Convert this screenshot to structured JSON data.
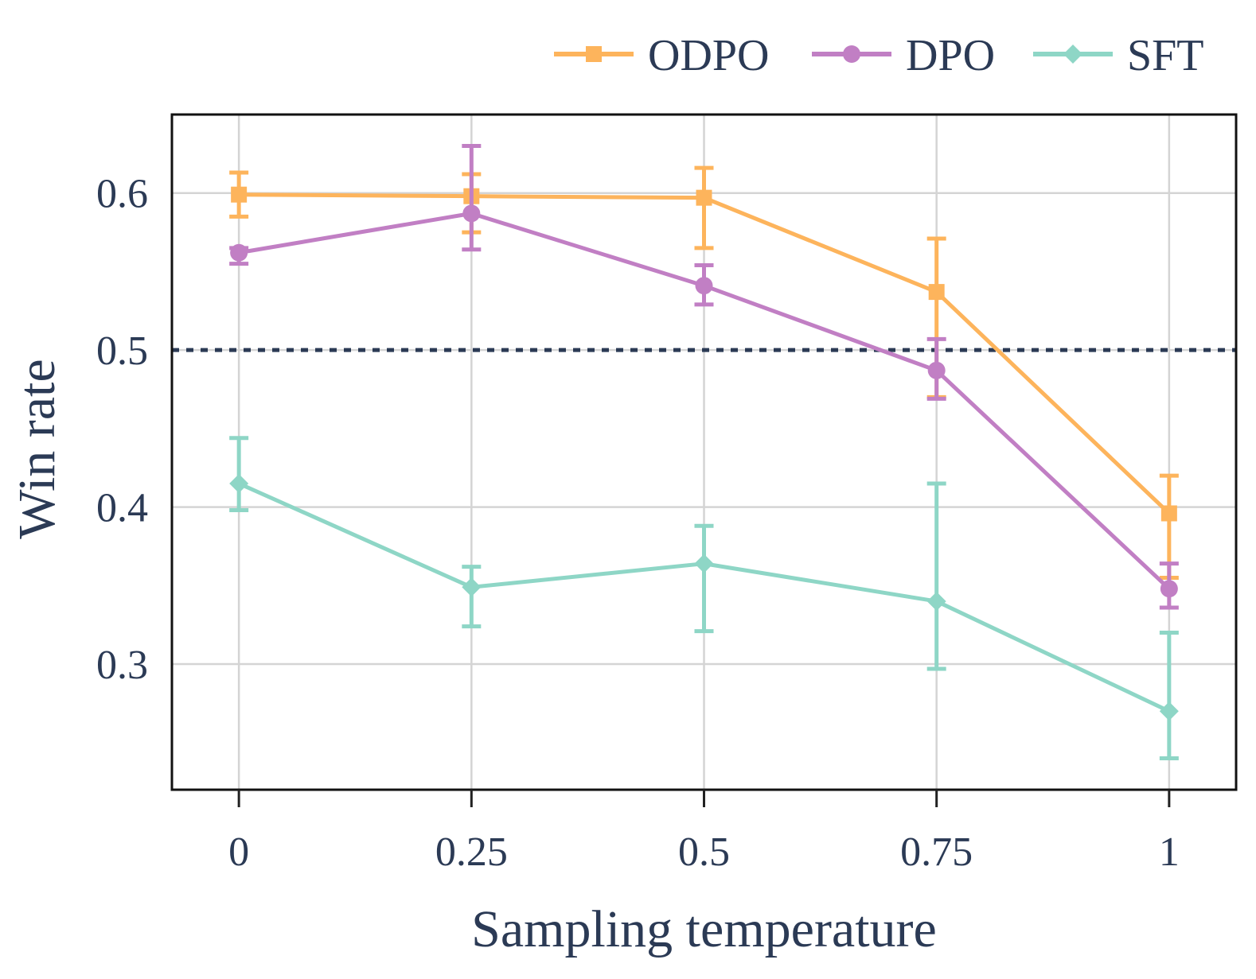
{
  "chart_data": {
    "type": "line",
    "title": "",
    "xlabel": "Sampling temperature",
    "ylabel": "Win rate",
    "x": [
      0,
      0.25,
      0.5,
      0.75,
      1
    ],
    "x_tick_labels": [
      "0",
      "0.25",
      "0.5",
      "0.75",
      "1"
    ],
    "y_ticks": [
      0.3,
      0.4,
      0.5,
      0.6
    ],
    "y_tick_labels": [
      "0.3",
      "0.4",
      "0.5",
      "0.6"
    ],
    "xlim": [
      -0.072,
      1.072
    ],
    "ylim": [
      0.22,
      0.65
    ],
    "grid": true,
    "legend_position": "top-right",
    "reference_line": {
      "y": 0.5,
      "style": "dotted",
      "color": "#2b3a55"
    },
    "series": [
      {
        "name": "ODPO",
        "color": "#fdb45c",
        "marker": "square",
        "values": [
          0.599,
          0.598,
          0.597,
          0.537,
          0.396
        ],
        "err_low": [
          0.585,
          0.575,
          0.565,
          0.47,
          0.355
        ],
        "err_high": [
          0.613,
          0.612,
          0.616,
          0.571,
          0.42
        ]
      },
      {
        "name": "DPO",
        "color": "#c17fc4",
        "marker": "circle",
        "values": [
          0.562,
          0.587,
          0.541,
          0.487,
          0.348
        ],
        "err_low": [
          0.555,
          0.564,
          0.529,
          0.469,
          0.336
        ],
        "err_high": [
          0.565,
          0.63,
          0.554,
          0.507,
          0.364
        ]
      },
      {
        "name": "SFT",
        "color": "#8ed6c6",
        "marker": "diamond",
        "values": [
          0.415,
          0.349,
          0.364,
          0.34,
          0.27
        ],
        "err_low": [
          0.398,
          0.324,
          0.321,
          0.297,
          0.24
        ],
        "err_high": [
          0.444,
          0.362,
          0.388,
          0.415,
          0.32
        ]
      }
    ]
  }
}
